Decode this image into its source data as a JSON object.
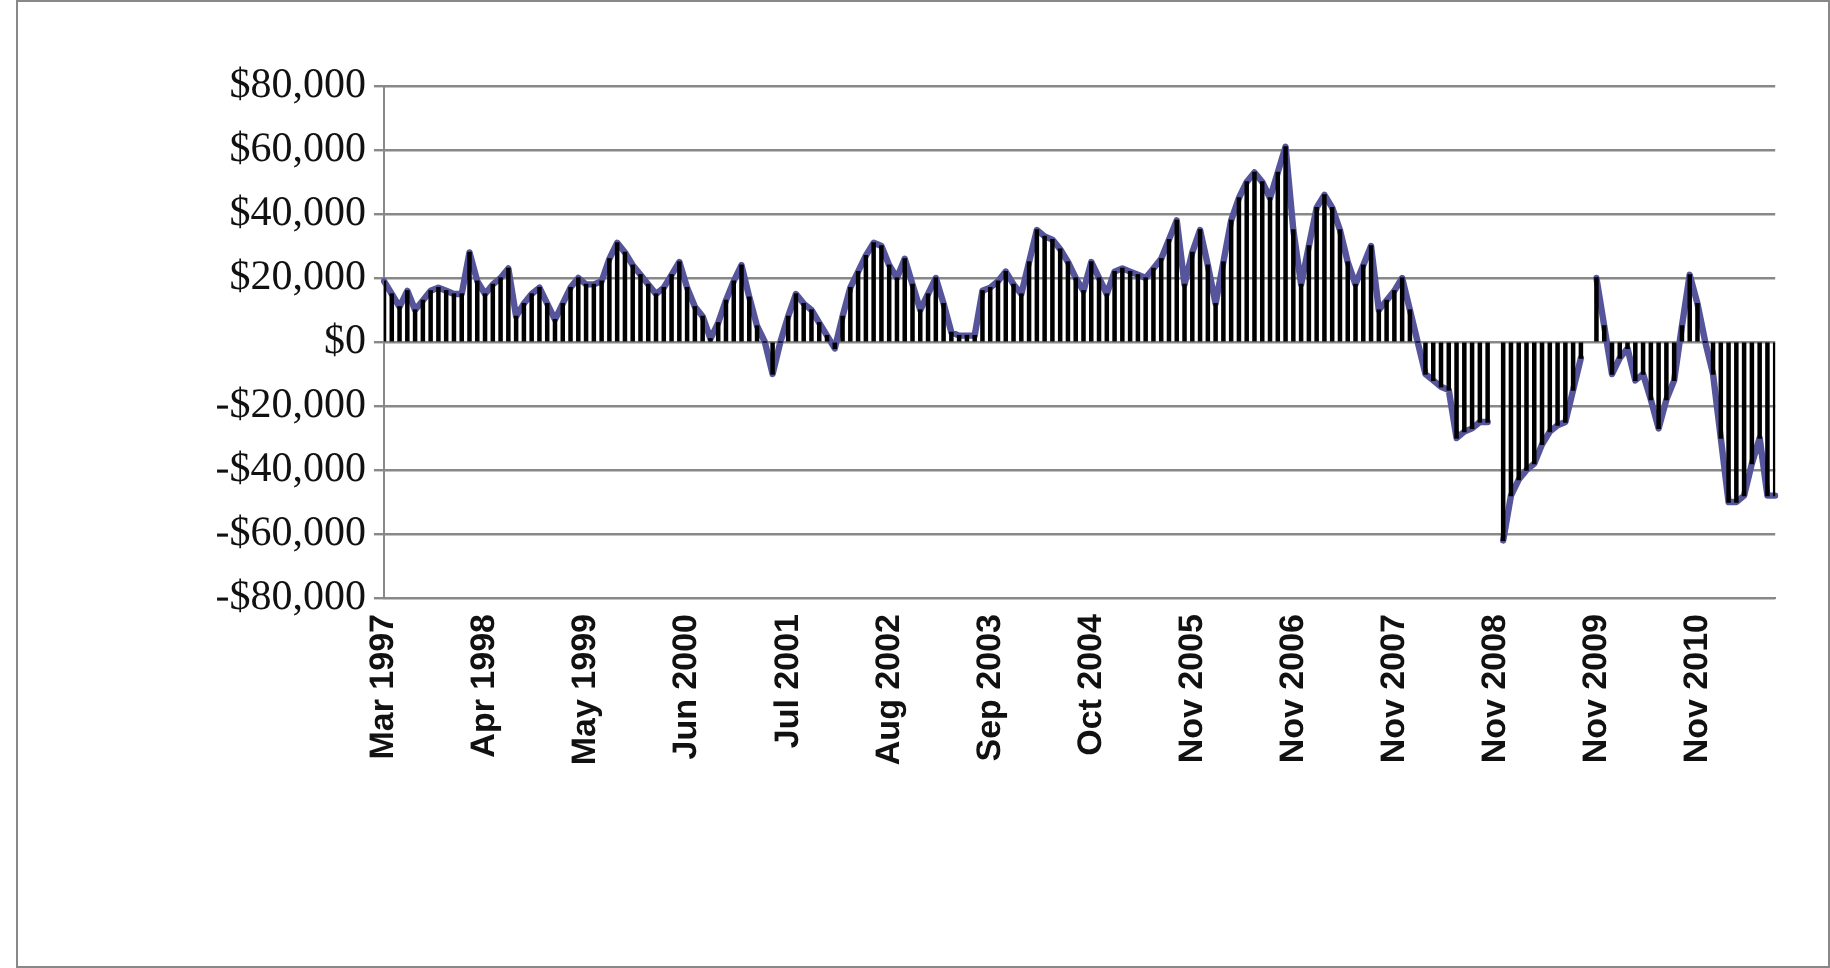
{
  "chart_data": {
    "type": "line",
    "categories": [
      "Mar 1997",
      null,
      null,
      null,
      null,
      null,
      null,
      null,
      null,
      null,
      null,
      null,
      null,
      "Apr 1998",
      null,
      null,
      null,
      null,
      null,
      null,
      null,
      null,
      null,
      null,
      null,
      null,
      "May 1999",
      null,
      null,
      null,
      null,
      null,
      null,
      null,
      null,
      null,
      null,
      null,
      null,
      "Jun 2000",
      null,
      null,
      null,
      null,
      null,
      null,
      null,
      null,
      null,
      null,
      null,
      null,
      "Jul 2001",
      null,
      null,
      null,
      null,
      null,
      null,
      null,
      null,
      null,
      null,
      null,
      null,
      "Aug 2002",
      null,
      null,
      null,
      null,
      null,
      null,
      null,
      null,
      null,
      null,
      null,
      null,
      "Sep 2003",
      null,
      null,
      null,
      null,
      null,
      null,
      null,
      null,
      null,
      null,
      null,
      null,
      "Oct 2004",
      null,
      null,
      null,
      null,
      null,
      null,
      null,
      null,
      null,
      null,
      null,
      null,
      "Nov 2005",
      null,
      null,
      null,
      null,
      null,
      null,
      null,
      null,
      null,
      null,
      null,
      null,
      "Nov 2006",
      null,
      null,
      null,
      null,
      null,
      null,
      null,
      null,
      null,
      null,
      null,
      null,
      "Nov 2007",
      null,
      null,
      null,
      null,
      null,
      null,
      null,
      null,
      null,
      null,
      null,
      null,
      "Nov 2008",
      null,
      null,
      null,
      null,
      null,
      null,
      null,
      null,
      null,
      null,
      null,
      null,
      "Nov 2009",
      null,
      null,
      null,
      null,
      null,
      null,
      null,
      null,
      null,
      null,
      null,
      null,
      "Nov 2010",
      null,
      null,
      null,
      null,
      null,
      null,
      null,
      null,
      null,
      null
    ],
    "series": [
      {
        "type": "bar",
        "color": "#000000",
        "values": [
          19000,
          15000,
          11000,
          16000,
          10000,
          13000,
          16000,
          17000,
          16000,
          15000,
          15000,
          28000,
          19000,
          15000,
          18000,
          20000,
          23000,
          8000,
          12000,
          15000,
          17000,
          12000,
          7000,
          12000,
          17000,
          20000,
          18000,
          18000,
          19000,
          26000,
          31000,
          28000,
          24000,
          21000,
          18000,
          15000,
          17000,
          21000,
          25000,
          17000,
          11000,
          8000,
          1000,
          6000,
          13000,
          19000,
          24000,
          14000,
          5000,
          0,
          -10000,
          0,
          8000,
          15000,
          12000,
          10000,
          6000,
          2000,
          -2000,
          8000,
          17000,
          22000,
          27000,
          31000,
          30000,
          24000,
          20000,
          26000,
          18000,
          10000,
          15000,
          20000,
          12000,
          3000,
          2000,
          2000,
          2000,
          16000,
          17000,
          19000,
          22000,
          18000,
          15000,
          25000,
          35000,
          33000,
          32000,
          29000,
          25000,
          20000,
          16000,
          25000,
          20000,
          15000,
          22000,
          23000,
          22000,
          21000,
          20000,
          23000,
          26000,
          32000,
          38000,
          18000,
          28000,
          35000,
          24000,
          12000,
          25000,
          38000,
          45000,
          50000,
          53000,
          50000,
          45000,
          53000,
          61000,
          35000,
          18000,
          30000,
          42000,
          46000,
          42000,
          35000,
          25000,
          18000,
          24000,
          30000,
          10000,
          13000,
          16000,
          20000,
          10000,
          0,
          -10000,
          -12000,
          -14000,
          -15000,
          -30000,
          -28000,
          -27000,
          -25000,
          -25000,
          null,
          -62000,
          -48000,
          -43000,
          -40000,
          -38000,
          -32000,
          -28000,
          -26000,
          -25000,
          -15000,
          -5000,
          null,
          20000,
          5000,
          -10000,
          -5000,
          -2000,
          -12000,
          -10000,
          -18000,
          -27000,
          -18000,
          -12000,
          5000,
          21000,
          12000,
          0,
          -10000,
          -30000,
          -50000,
          -50000,
          -48000,
          -38000,
          -30000,
          -48000,
          -48000
        ]
      },
      {
        "color": "#56559b",
        "values": [
          19000,
          15000,
          11000,
          16000,
          10000,
          13000,
          16000,
          17000,
          16000,
          15000,
          15000,
          28000,
          19000,
          15000,
          18000,
          20000,
          23000,
          8000,
          12000,
          15000,
          17000,
          12000,
          7000,
          12000,
          17000,
          20000,
          18000,
          18000,
          19000,
          26000,
          31000,
          28000,
          24000,
          21000,
          18000,
          15000,
          17000,
          21000,
          25000,
          17000,
          11000,
          8000,
          1000,
          6000,
          13000,
          19000,
          24000,
          14000,
          5000,
          0,
          -10000,
          0,
          8000,
          15000,
          12000,
          10000,
          6000,
          2000,
          -2000,
          8000,
          17000,
          22000,
          27000,
          31000,
          30000,
          24000,
          20000,
          26000,
          18000,
          10000,
          15000,
          20000,
          12000,
          3000,
          2000,
          2000,
          2000,
          16000,
          17000,
          19000,
          22000,
          18000,
          15000,
          25000,
          35000,
          33000,
          32000,
          29000,
          25000,
          20000,
          16000,
          25000,
          20000,
          15000,
          22000,
          23000,
          22000,
          21000,
          20000,
          23000,
          26000,
          32000,
          38000,
          18000,
          28000,
          35000,
          24000,
          12000,
          25000,
          38000,
          45000,
          50000,
          53000,
          50000,
          45000,
          53000,
          61000,
          35000,
          18000,
          30000,
          42000,
          46000,
          42000,
          35000,
          25000,
          18000,
          24000,
          30000,
          10000,
          13000,
          16000,
          20000,
          10000,
          0,
          -10000,
          -12000,
          -14000,
          -15000,
          -30000,
          -28000,
          -27000,
          -25000,
          -25000,
          null,
          -62000,
          -48000,
          -43000,
          -40000,
          -38000,
          -32000,
          -28000,
          -26000,
          -25000,
          -15000,
          -5000,
          null,
          20000,
          5000,
          -10000,
          -5000,
          -2000,
          -12000,
          -10000,
          -18000,
          -27000,
          -18000,
          -12000,
          5000,
          21000,
          12000,
          0,
          -10000,
          -30000,
          -50000,
          -50000,
          -48000,
          -38000,
          -30000,
          -48000,
          -48000
        ]
      }
    ],
    "ylim": [
      -80000,
      80000
    ],
    "yticks": [
      {
        "value": -80000,
        "label": "-$80,000"
      },
      {
        "value": -60000,
        "label": "-$60,000"
      },
      {
        "value": -40000,
        "label": "-$40,000"
      },
      {
        "value": -20000,
        "label": "-$20,000"
      },
      {
        "value": 0,
        "label": "$0"
      },
      {
        "value": 20000,
        "label": "$20,000"
      },
      {
        "value": 40000,
        "label": "$40,000"
      },
      {
        "value": 60000,
        "label": "$60,000"
      },
      {
        "value": 80000,
        "label": "$80,000"
      }
    ],
    "grid": "y",
    "marker": "none"
  }
}
